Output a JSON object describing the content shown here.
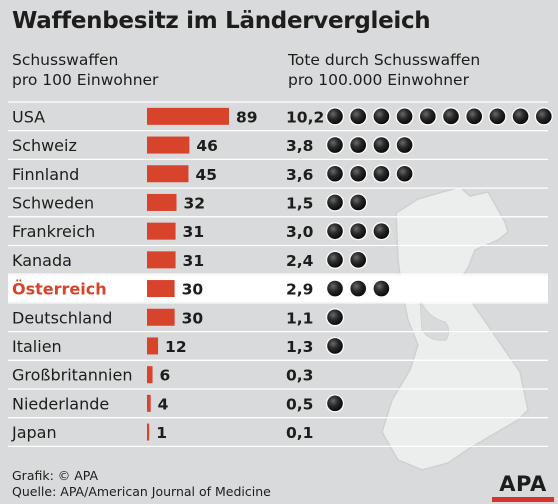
{
  "title": "Waffenbesitz im Ländervergleich",
  "chart_data": {
    "type": "table",
    "columns": [
      {
        "name": "Schusswaffen pro 100 Einwohner",
        "lines": [
          "Schusswaffen",
          "pro 100 Einwohner"
        ]
      },
      {
        "name": "Tote durch Schusswaffen pro 100.000 Einwohner",
        "lines": [
          "Tote durch Schusswaffen",
          "pro 100.000 Einwohner"
        ]
      }
    ],
    "rows": [
      {
        "country": "USA",
        "guns": 89,
        "deaths": "10,2",
        "dots": 10,
        "highlight": false
      },
      {
        "country": "Schweiz",
        "guns": 46,
        "deaths": "3,8",
        "dots": 4,
        "highlight": false
      },
      {
        "country": "Finnland",
        "guns": 45,
        "deaths": "3,6",
        "dots": 4,
        "highlight": false
      },
      {
        "country": "Schweden",
        "guns": 32,
        "deaths": "1,5",
        "dots": 2,
        "highlight": false
      },
      {
        "country": "Frankreich",
        "guns": 31,
        "deaths": "3,0",
        "dots": 3,
        "highlight": false
      },
      {
        "country": "Kanada",
        "guns": 31,
        "deaths": "2,4",
        "dots": 2,
        "highlight": false
      },
      {
        "country": "Österreich",
        "guns": 30,
        "deaths": "2,9",
        "dots": 3,
        "highlight": true
      },
      {
        "country": "Deutschland",
        "guns": 30,
        "deaths": "1,1",
        "dots": 1,
        "highlight": false
      },
      {
        "country": "Italien",
        "guns": 12,
        "deaths": "1,3",
        "dots": 1,
        "highlight": false
      },
      {
        "country": "Großbritannien",
        "guns": 6,
        "deaths": "0,3",
        "dots": 0,
        "highlight": false
      },
      {
        "country": "Niederlande",
        "guns": 4,
        "deaths": "0,5",
        "dots": 1,
        "highlight": false
      },
      {
        "country": "Japan",
        "guns": 1,
        "deaths": "0,1",
        "dots": 0,
        "highlight": false
      }
    ],
    "bar_max": 89
  },
  "colors": {
    "background": "#d9dadb",
    "bar": "#d7432b",
    "highlight_text": "#d7432b",
    "highlight_row": "#ffffff",
    "rule": "#ffffff",
    "text": "#1d1d1b",
    "gun": "#eceded"
  },
  "footer": {
    "credit": "Grafik: © APA",
    "source": "Quelle: APA/American Journal of Medicine"
  },
  "logo": {
    "text": "APA"
  }
}
